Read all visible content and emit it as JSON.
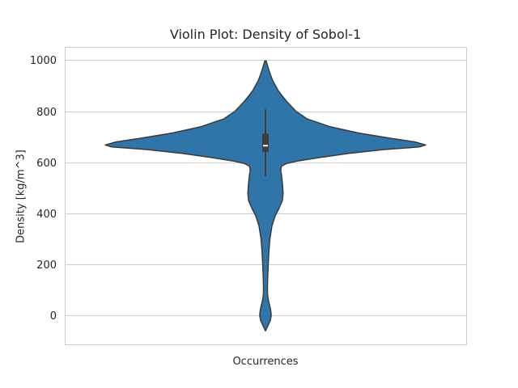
{
  "chart_data": {
    "type": "violin",
    "title": "Violin Plot: Density of Sobol-1",
    "xlabel": "Occurrences",
    "ylabel": "Density [kg/m^3]",
    "ylim": [
      -113,
      1052
    ],
    "yticks": [
      0,
      200,
      400,
      600,
      800,
      1000
    ],
    "grid": true,
    "color": "#2f75a9",
    "edge_color": "#3a3a3a",
    "box": {
      "q1": 640,
      "median": 665,
      "q3": 713,
      "whisker_low": 545,
      "whisker_high": 808
    },
    "violin_profile": [
      {
        "y": 997,
        "w": 0.004
      },
      {
        "y": 980,
        "w": 0.012
      },
      {
        "y": 955,
        "w": 0.024
      },
      {
        "y": 920,
        "w": 0.045
      },
      {
        "y": 880,
        "w": 0.08
      },
      {
        "y": 840,
        "w": 0.13
      },
      {
        "y": 800,
        "w": 0.19
      },
      {
        "y": 770,
        "w": 0.26
      },
      {
        "y": 740,
        "w": 0.4
      },
      {
        "y": 715,
        "w": 0.58
      },
      {
        "y": 695,
        "w": 0.77
      },
      {
        "y": 680,
        "w": 0.93
      },
      {
        "y": 668,
        "w": 1.0
      },
      {
        "y": 660,
        "w": 0.96
      },
      {
        "y": 650,
        "w": 0.74
      },
      {
        "y": 635,
        "w": 0.52
      },
      {
        "y": 618,
        "w": 0.33
      },
      {
        "y": 605,
        "w": 0.2
      },
      {
        "y": 595,
        "w": 0.13
      },
      {
        "y": 585,
        "w": 0.1
      },
      {
        "y": 570,
        "w": 0.095
      },
      {
        "y": 550,
        "w": 0.1
      },
      {
        "y": 520,
        "w": 0.105
      },
      {
        "y": 480,
        "w": 0.11
      },
      {
        "y": 450,
        "w": 0.105
      },
      {
        "y": 420,
        "w": 0.085
      },
      {
        "y": 390,
        "w": 0.06
      },
      {
        "y": 350,
        "w": 0.04
      },
      {
        "y": 300,
        "w": 0.028
      },
      {
        "y": 250,
        "w": 0.021
      },
      {
        "y": 200,
        "w": 0.017
      },
      {
        "y": 150,
        "w": 0.014
      },
      {
        "y": 110,
        "w": 0.012
      },
      {
        "y": 80,
        "w": 0.013
      },
      {
        "y": 60,
        "w": 0.018
      },
      {
        "y": 40,
        "w": 0.026
      },
      {
        "y": 20,
        "w": 0.033
      },
      {
        "y": 0,
        "w": 0.036
      },
      {
        "y": -20,
        "w": 0.03
      },
      {
        "y": -40,
        "w": 0.015
      },
      {
        "y": -60,
        "w": 0.0
      }
    ]
  }
}
